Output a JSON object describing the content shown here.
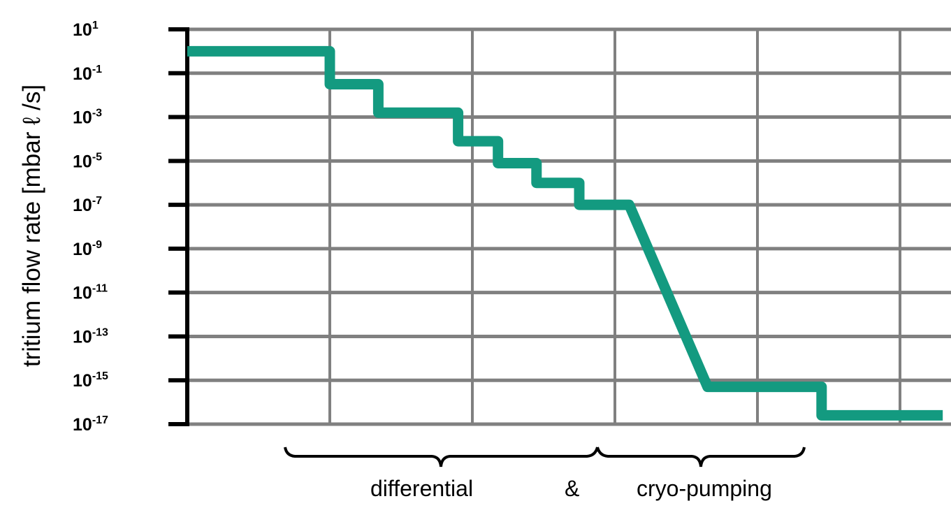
{
  "chart_data": {
    "type": "line",
    "title": "",
    "xlabel": "",
    "ylabel": "tritium flow rate [mbar ℓ /s]",
    "y_scale": "log",
    "ylim": [
      1e-17,
      10
    ],
    "y_tick_labels": [
      {
        "base": "10",
        "exp": "1"
      },
      {
        "base": "10",
        "exp": "-1"
      },
      {
        "base": "10",
        "exp": "-3"
      },
      {
        "base": "10",
        "exp": "-5"
      },
      {
        "base": "10",
        "exp": "-7"
      },
      {
        "base": "10",
        "exp": "-9"
      },
      {
        "base": "10",
        "exp": "-11"
      },
      {
        "base": "10",
        "exp": "-13"
      },
      {
        "base": "10",
        "exp": "-15"
      },
      {
        "base": "10",
        "exp": "-17"
      }
    ],
    "grid": true,
    "x_tick_labels": [],
    "series": [
      {
        "color": "#139a80",
        "points_log10": [
          [
            0,
            0.0
          ],
          [
            1.0,
            0.0
          ],
          [
            1.0,
            -1.5
          ],
          [
            1.34,
            -1.5
          ],
          [
            1.34,
            -2.8
          ],
          [
            1.9,
            -2.8
          ],
          [
            1.9,
            -4.1
          ],
          [
            2.18,
            -4.1
          ],
          [
            2.18,
            -5.1
          ],
          [
            2.45,
            -5.1
          ],
          [
            2.45,
            -6.0
          ],
          [
            2.75,
            -6.0
          ],
          [
            2.75,
            -7.0
          ],
          [
            3.1,
            -7.0
          ],
          [
            3.65,
            -15.3
          ],
          [
            4.45,
            -15.3
          ],
          [
            4.45,
            -16.6
          ],
          [
            5.3,
            -16.6
          ]
        ]
      }
    ],
    "annotations": {
      "left": "differential",
      "middle": "&",
      "right": "cryo-pumping"
    }
  }
}
